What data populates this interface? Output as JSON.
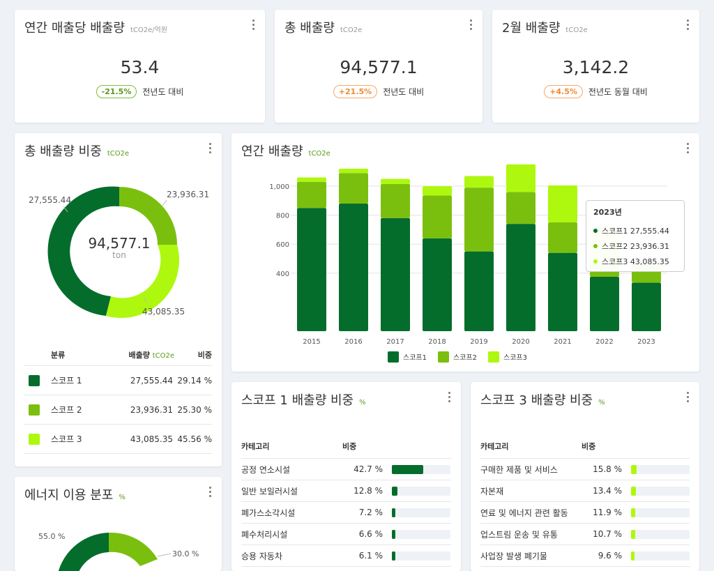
{
  "kpi": [
    {
      "title": "연간 매출당 배출량",
      "unit": "tCO2e/억원",
      "value": "53.4",
      "change": "-21.5%",
      "change_color": "green",
      "compare": "전년도 대비"
    },
    {
      "title": "총 배출량",
      "unit": "tCO2e",
      "value": "94,577.1",
      "change": "+21.5%",
      "change_color": "orange",
      "compare": "전년도 대비"
    },
    {
      "title": "2월 배출량",
      "unit": "tCO2e",
      "value": "3,142.2",
      "change": "+4.5%",
      "change_color": "orange",
      "compare": "전년도 동월 대비"
    }
  ],
  "share": {
    "title": "총 배출량 비중",
    "unit": "tCO2e",
    "center_value": "94,577.1",
    "center_unit": "ton",
    "labels": [
      "27,555.44",
      "23,936.31",
      "43,085.35"
    ],
    "table_headers": [
      "분류",
      "배출량",
      "tCO2e",
      "비중"
    ],
    "rows": [
      {
        "name": "스코프 1",
        "value": "27,555.44",
        "pct": "29.14 %",
        "color": "#046d2c"
      },
      {
        "name": "스코프 2",
        "value": "23,936.31",
        "pct": "25.30 %",
        "color": "#7bbf0e"
      },
      {
        "name": "스코프 3",
        "value": "43,085.35",
        "pct": "45.56 %",
        "color": "#adf80e"
      }
    ]
  },
  "annual": {
    "title": "연간 배출량",
    "unit": "tCO2e",
    "tooltip": {
      "title": "2023년",
      "rows": [
        "스코프1 27,555.44",
        "스코프2 23,936.31",
        "스코프3 43,085.35"
      ]
    }
  },
  "chart_data": {
    "type": "bar",
    "stacked": true,
    "categories": [
      "2015",
      "2016",
      "2017",
      "2018",
      "2019",
      "2020",
      "2021",
      "2022",
      "2023"
    ],
    "series": [
      {
        "name": "스코프1",
        "color": "#046d2c",
        "values": [
          850,
          880,
          780,
          640,
          550,
          740,
          540,
          375,
          335
        ]
      },
      {
        "name": "스코프2",
        "color": "#7bbf0e",
        "values": [
          180,
          210,
          235,
          295,
          440,
          220,
          210,
          100,
          130
        ]
      },
      {
        "name": "스코프3",
        "color": "#adf80e",
        "values": [
          30,
          30,
          35,
          65,
          80,
          190,
          255,
          245,
          0
        ]
      }
    ],
    "yticks": [
      "400",
      "600",
      "800",
      "1,000"
    ],
    "ylim": [
      0,
      1080
    ],
    "legend": "bottom"
  },
  "energy": {
    "title": "에너지 이용 분포",
    "unit": "%",
    "labels": [
      "55.0 %",
      "30.0 %"
    ]
  },
  "scope1": {
    "title": "스코프 1 배출량 비중",
    "unit": "%",
    "headers": [
      "카테고리",
      "비중"
    ],
    "rows": [
      {
        "name": "공정 연소시설",
        "pct": "42.7 %",
        "fill": 0.53
      },
      {
        "name": "일반 보일러시설",
        "pct": "12.8 %",
        "fill": 0.1
      },
      {
        "name": "폐가스소각시설",
        "pct": "7.2 %",
        "fill": 0.05
      },
      {
        "name": "폐수처리시설",
        "pct": "6.6 %",
        "fill": 0.04
      },
      {
        "name": "승용 자동차",
        "pct": "6.1 %",
        "fill": 0.04
      }
    ]
  },
  "scope3": {
    "title": "스코프 3 배출량 비중",
    "unit": "%",
    "headers": [
      "카테고리",
      "비중"
    ],
    "rows": [
      {
        "name": "구매한 제품 및 서비스",
        "pct": "15.8 %",
        "fill": 0.09
      },
      {
        "name": "자본재",
        "pct": "13.4 %",
        "fill": 0.08
      },
      {
        "name": "연료 및 에너지 관련 활동",
        "pct": "11.9 %",
        "fill": 0.07
      },
      {
        "name": "업스트림 운송 및 유통",
        "pct": "10.7 %",
        "fill": 0.07
      },
      {
        "name": "사업장 발생 폐기물",
        "pct": "9.6 %",
        "fill": 0.06
      }
    ]
  }
}
